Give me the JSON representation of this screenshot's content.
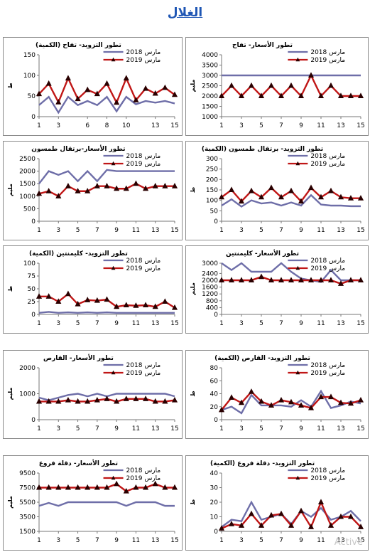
{
  "page_title": "الغلال",
  "watermark": "Active",
  "colors": {
    "series_2018": "#6e6ea8",
    "series_2019": "#c01616",
    "marker_2019": "#2a0000",
    "frame": "#8a8a8a"
  },
  "chart_data": [
    {
      "id": "apple-supply",
      "type": "line",
      "title": "تطور التزويد- تفاح (الكمية)",
      "ylabel": "ط",
      "ylim": [
        0,
        150
      ],
      "yticks": [
        0,
        50,
        100,
        150
      ],
      "xticks": [
        1,
        3,
        6,
        8,
        10,
        13,
        15
      ],
      "x": [
        1,
        2,
        3,
        4,
        5,
        6,
        7,
        8,
        9,
        10,
        11,
        12,
        13,
        14,
        15
      ],
      "series": [
        {
          "name": "مارس 2018",
          "values": [
            28,
            48,
            10,
            48,
            28,
            38,
            28,
            48,
            13,
            48,
            30,
            38,
            34,
            38,
            32
          ]
        },
        {
          "name": "مارس 2019",
          "values": [
            55,
            80,
            35,
            93,
            43,
            65,
            55,
            80,
            34,
            93,
            40,
            68,
            56,
            70,
            53
          ]
        }
      ]
    },
    {
      "id": "apple-price",
      "type": "line",
      "title": "تطور الأسعار- تفاح",
      "ylabel": "مليم",
      "ylim": [
        1000,
        4000
      ],
      "yticks": [
        1000,
        1500,
        2000,
        2500,
        3000,
        3500,
        4000
      ],
      "xticks": [
        1,
        3,
        5,
        7,
        9,
        11,
        13,
        15
      ],
      "x": [
        1,
        2,
        3,
        4,
        5,
        6,
        7,
        8,
        9,
        10,
        11,
        12,
        13,
        14,
        15
      ],
      "series": [
        {
          "name": "مارس 2018",
          "values": [
            3000,
            3000,
            3000,
            3000,
            3000,
            3000,
            3000,
            3000,
            3000,
            3000,
            3000,
            3000,
            3000,
            3000,
            3000
          ]
        },
        {
          "name": "مارس 2019",
          "values": [
            2000,
            2500,
            2000,
            2500,
            2000,
            2500,
            2000,
            2500,
            2000,
            3000,
            2000,
            2500,
            2000,
            2000,
            2000
          ]
        }
      ]
    },
    {
      "id": "orange-price",
      "type": "line",
      "title": "تطور الأسعار-برتقال طمسون",
      "ylabel": "مليم",
      "ylim": [
        0,
        2500
      ],
      "yticks": [
        0,
        500,
        1000,
        1500,
        2000,
        2500
      ],
      "xticks": [
        1,
        3,
        5,
        7,
        9,
        11,
        13,
        15
      ],
      "x": [
        1,
        2,
        3,
        4,
        5,
        6,
        7,
        8,
        9,
        10,
        11,
        12,
        13,
        14,
        15
      ],
      "series": [
        {
          "name": "مارس 2018",
          "values": [
            1500,
            2000,
            1850,
            2000,
            1600,
            2000,
            1600,
            2050,
            2000,
            2000,
            2000,
            2000,
            2000,
            2000,
            2000
          ]
        },
        {
          "name": "مارس 2019",
          "values": [
            1100,
            1200,
            1000,
            1400,
            1200,
            1200,
            1400,
            1400,
            1300,
            1300,
            1500,
            1300,
            1400,
            1400,
            1400
          ]
        }
      ]
    },
    {
      "id": "orange-supply",
      "type": "line",
      "title": "تطور التزويد- برتقال طمسون (الكمية)",
      "ylabel": "ط",
      "ylim": [
        0,
        300
      ],
      "yticks": [
        0,
        50,
        100,
        150,
        200,
        250,
        300
      ],
      "xticks": [
        1,
        3,
        5,
        7,
        9,
        11,
        13,
        15
      ],
      "x": [
        1,
        2,
        3,
        4,
        5,
        6,
        7,
        8,
        9,
        10,
        11,
        12,
        13,
        14,
        15
      ],
      "series": [
        {
          "name": "مارس 2018",
          "values": [
            75,
            105,
            70,
            100,
            85,
            90,
            75,
            90,
            75,
            125,
            80,
            75,
            75,
            72,
            72
          ]
        },
        {
          "name": "مارس 2019",
          "values": [
            115,
            150,
            95,
            145,
            115,
            160,
            115,
            145,
            95,
            160,
            115,
            145,
            115,
            110,
            110
          ]
        }
      ]
    },
    {
      "id": "clementine-supply",
      "type": "line",
      "title": "تطور التزويد- كليمنتين (الكمية)",
      "ylabel": "ط",
      "ylim": [
        0,
        100
      ],
      "yticks": [
        0,
        25,
        50,
        75,
        100
      ],
      "xticks": [
        1,
        3,
        5,
        7,
        9,
        11,
        13,
        15
      ],
      "x": [
        1,
        2,
        3,
        4,
        5,
        6,
        7,
        8,
        9,
        10,
        11,
        12,
        13,
        14,
        15
      ],
      "series": [
        {
          "name": "مارس 2018",
          "values": [
            3,
            5,
            3,
            4,
            3,
            4,
            3,
            4,
            3,
            3,
            3,
            3,
            3,
            3,
            3
          ]
        },
        {
          "name": "مارس 2019",
          "values": [
            35,
            35,
            25,
            40,
            20,
            28,
            27,
            29,
            15,
            18,
            17,
            18,
            15,
            25,
            13
          ]
        }
      ]
    },
    {
      "id": "clementine-price",
      "type": "line",
      "title": "تطور الأسعار- كليمنتين",
      "ylabel": "مليم",
      "ylim": [
        0,
        3000
      ],
      "yticks": [
        0,
        400,
        800,
        1200,
        1600,
        2000,
        2400,
        3000
      ],
      "xticks": [
        1,
        3,
        5,
        7,
        9,
        11,
        13,
        15
      ],
      "x": [
        1,
        2,
        3,
        4,
        5,
        6,
        7,
        8,
        9,
        10,
        11,
        12,
        13,
        14,
        15
      ],
      "series": [
        {
          "name": "مارس 2018",
          "values": [
            3000,
            2600,
            3000,
            2500,
            2500,
            2500,
            3000,
            2500,
            2100,
            2000,
            1900,
            2600,
            2000,
            2000,
            2000
          ]
        },
        {
          "name": "مارس 2019",
          "values": [
            2000,
            2000,
            2000,
            2000,
            2200,
            2000,
            2000,
            2000,
            2000,
            2000,
            2000,
            2000,
            1800,
            2000,
            2000
          ]
        }
      ]
    },
    {
      "id": "pear-price",
      "type": "line",
      "title": "تطور الأسعار- القارص",
      "ylabel": "مليم",
      "ylim": [
        0,
        2000
      ],
      "yticks": [
        0,
        1000,
        2000
      ],
      "xticks": [
        1,
        3,
        5,
        7,
        9,
        11,
        13,
        15
      ],
      "x": [
        1,
        2,
        3,
        4,
        5,
        6,
        7,
        8,
        9,
        10,
        11,
        12,
        13,
        14,
        15
      ],
      "series": [
        {
          "name": "مارس 2018",
          "values": [
            850,
            750,
            850,
            950,
            1000,
            900,
            1000,
            900,
            1000,
            1000,
            1000,
            1000,
            1000,
            1000,
            900
          ]
        },
        {
          "name": "مارس 2019",
          "values": [
            700,
            700,
            700,
            750,
            700,
            700,
            750,
            800,
            700,
            800,
            800,
            800,
            700,
            700,
            750
          ]
        }
      ]
    },
    {
      "id": "pear-supply",
      "type": "line",
      "title": "تطور التزويد- القارص (الكمية)",
      "ylabel": "ط",
      "ylim": [
        0,
        80
      ],
      "yticks": [
        0,
        20,
        40,
        60,
        80
      ],
      "xticks": [
        1,
        3,
        5,
        7,
        9,
        11,
        13,
        15
      ],
      "x": [
        1,
        2,
        3,
        4,
        5,
        6,
        7,
        8,
        9,
        10,
        11,
        12,
        13,
        14,
        15
      ],
      "series": [
        {
          "name": "مارس 2018",
          "values": [
            15,
            20,
            10,
            38,
            22,
            22,
            22,
            20,
            30,
            20,
            44,
            18,
            22,
            28,
            25
          ]
        },
        {
          "name": "مارس 2019",
          "values": [
            15,
            34,
            26,
            43,
            28,
            22,
            30,
            27,
            22,
            18,
            35,
            35,
            26,
            25,
            30
          ]
        }
      ]
    },
    {
      "id": "dates-price",
      "type": "line",
      "title": "تطور الأسعار- دقلة فروع",
      "ylabel": "مليم",
      "ylim": [
        1500,
        9500
      ],
      "yticks": [
        1500,
        3500,
        5500,
        7500,
        9500
      ],
      "xticks": [
        1,
        3,
        5,
        7,
        9,
        11,
        13,
        15
      ],
      "x": [
        1,
        2,
        3,
        4,
        5,
        6,
        7,
        8,
        9,
        10,
        11,
        12,
        13,
        14,
        15
      ],
      "series": [
        {
          "name": "مارس 2018",
          "values": [
            5000,
            5400,
            5000,
            5500,
            5500,
            5500,
            5500,
            5500,
            5500,
            5000,
            5500,
            5500,
            5500,
            5000,
            5000
          ]
        },
        {
          "name": "مارس 2019",
          "values": [
            7500,
            7500,
            7500,
            7500,
            7500,
            7500,
            7500,
            7500,
            8000,
            7000,
            7500,
            7500,
            8000,
            7500,
            7500
          ]
        }
      ]
    },
    {
      "id": "dates-supply",
      "type": "line",
      "title": "تطور التزويد- دقلة فروع (الكمية)",
      "ylabel": "ط",
      "ylim": [
        0,
        40
      ],
      "yticks": [
        0,
        10,
        20,
        30,
        40
      ],
      "xticks": [
        1,
        3,
        5,
        7,
        9,
        11,
        13,
        15
      ],
      "x": [
        1,
        2,
        3,
        4,
        5,
        6,
        7,
        8,
        9,
        10,
        11,
        12,
        13,
        14,
        15
      ],
      "series": [
        {
          "name": "مارس 2018",
          "values": [
            3,
            8,
            7,
            20,
            8,
            10,
            12,
            5,
            14,
            10,
            16,
            8,
            10,
            14,
            7
          ]
        },
        {
          "name": "مارس 2019",
          "values": [
            2,
            5,
            4,
            12,
            4,
            11,
            12,
            4,
            14,
            3,
            20,
            4,
            10,
            10,
            3
          ]
        }
      ]
    }
  ]
}
